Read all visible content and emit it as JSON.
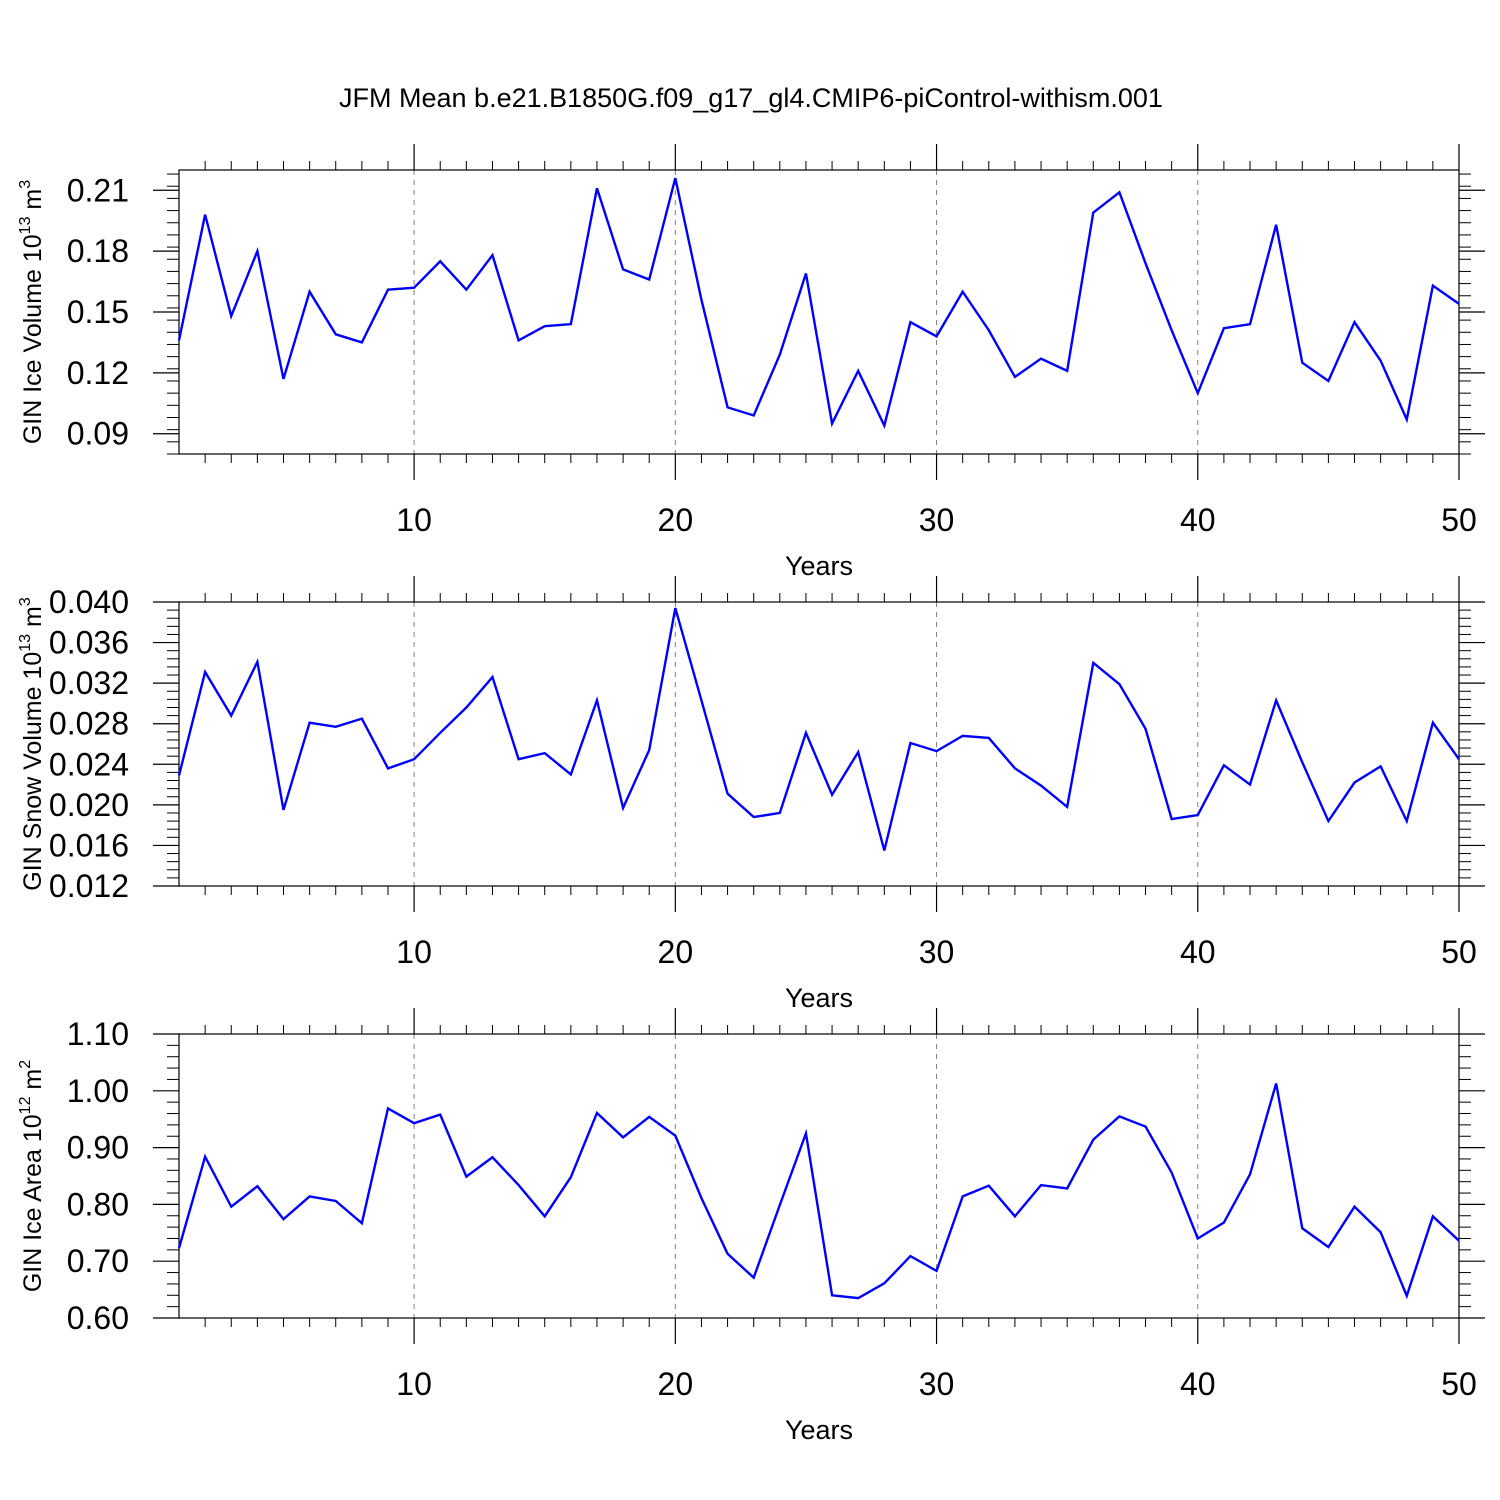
{
  "title": "JFM Mean b.e21.B1850G.f09_g17_gl4.CMIP6-piControl-withism.001",
  "colors": {
    "line": "#0000ff",
    "frame": "#000000",
    "grid": "#808080"
  },
  "chart_data": [
    {
      "type": "line",
      "ylabel": {
        "main": "GIN Ice Volume 10",
        "exponent": "13",
        "unit": " m",
        "unit_exp": "3"
      },
      "xlabel": "Years",
      "xlim": [
        1,
        50
      ],
      "ylim": [
        0.08,
        0.22
      ],
      "yticks": [
        0.09,
        0.12,
        0.15,
        0.18,
        0.21
      ],
      "ytick_labels": [
        "0.09",
        "0.12",
        "0.15",
        "0.18",
        "0.21"
      ],
      "xticks": [
        10,
        20,
        30,
        40,
        50
      ],
      "xtick_labels": [
        "10",
        "20",
        "30",
        "40",
        "50"
      ],
      "x": [
        1,
        2,
        3,
        4,
        5,
        6,
        7,
        8,
        9,
        10,
        11,
        12,
        13,
        14,
        15,
        16,
        17,
        18,
        19,
        20,
        21,
        22,
        23,
        24,
        25,
        26,
        27,
        28,
        29,
        30,
        31,
        32,
        33,
        34,
        35,
        36,
        37,
        38,
        39,
        40,
        41,
        42,
        43,
        44,
        45,
        46,
        47,
        48,
        49,
        50
      ],
      "values": [
        0.136,
        0.198,
        0.148,
        0.18,
        0.117,
        0.16,
        0.139,
        0.135,
        0.161,
        0.162,
        0.175,
        0.161,
        0.178,
        0.136,
        0.143,
        0.144,
        0.211,
        0.171,
        0.166,
        0.216,
        0.156,
        0.103,
        0.099,
        0.129,
        0.169,
        0.095,
        0.121,
        0.094,
        0.145,
        0.138,
        0.16,
        0.141,
        0.118,
        0.127,
        0.121,
        0.199,
        0.209,
        0.174,
        0.141,
        0.11,
        0.142,
        0.144,
        0.193,
        0.125,
        0.116,
        0.145,
        0.126,
        0.097,
        0.163,
        0.154
      ]
    },
    {
      "type": "line",
      "ylabel": {
        "main": "GIN Snow Volume 10",
        "exponent": "13",
        "unit": " m",
        "unit_exp": "3"
      },
      "xlabel": "Years",
      "xlim": [
        1,
        50
      ],
      "ylim": [
        0.012,
        0.04
      ],
      "yticks": [
        0.012,
        0.016,
        0.02,
        0.024,
        0.028,
        0.032,
        0.036,
        0.04
      ],
      "ytick_labels": [
        "0.012",
        "0.016",
        "0.020",
        "0.024",
        "0.028",
        "0.032",
        "0.036",
        "0.040"
      ],
      "xticks": [
        10,
        20,
        30,
        40,
        50
      ],
      "xtick_labels": [
        "10",
        "20",
        "30",
        "40",
        "50"
      ],
      "x": [
        1,
        2,
        3,
        4,
        5,
        6,
        7,
        8,
        9,
        10,
        11,
        12,
        13,
        14,
        15,
        16,
        17,
        18,
        19,
        20,
        21,
        22,
        23,
        24,
        25,
        26,
        27,
        28,
        29,
        30,
        31,
        32,
        33,
        34,
        35,
        36,
        37,
        38,
        39,
        40,
        41,
        42,
        43,
        44,
        45,
        46,
        47,
        48,
        49,
        50
      ],
      "values": [
        0.0229,
        0.0331,
        0.0288,
        0.0341,
        0.0195,
        0.0281,
        0.0277,
        0.0285,
        0.0236,
        0.0245,
        0.0271,
        0.0296,
        0.0326,
        0.0245,
        0.0251,
        0.023,
        0.0303,
        0.0197,
        0.0254,
        0.0394,
        0.0303,
        0.0211,
        0.0188,
        0.0192,
        0.0271,
        0.021,
        0.0252,
        0.0155,
        0.0261,
        0.0253,
        0.0268,
        0.0266,
        0.0236,
        0.0219,
        0.0198,
        0.034,
        0.0319,
        0.0275,
        0.0186,
        0.019,
        0.0239,
        0.022,
        0.0303,
        0.0242,
        0.0184,
        0.0222,
        0.0238,
        0.0184,
        0.0281,
        0.0245
      ]
    },
    {
      "type": "line",
      "ylabel": {
        "main": "GIN Ice Area 10",
        "exponent": "12",
        "unit": " m",
        "unit_exp": "2"
      },
      "xlabel": "Years",
      "xlim": [
        1,
        50
      ],
      "ylim": [
        0.6,
        1.1
      ],
      "yticks": [
        0.6,
        0.7,
        0.8,
        0.9,
        1.0,
        1.1
      ],
      "ytick_labels": [
        "0.60",
        "0.70",
        "0.80",
        "0.90",
        "1.00",
        "1.10"
      ],
      "xticks": [
        10,
        20,
        30,
        40,
        50
      ],
      "xtick_labels": [
        "10",
        "20",
        "30",
        "40",
        "50"
      ],
      "x": [
        1,
        2,
        3,
        4,
        5,
        6,
        7,
        8,
        9,
        10,
        11,
        12,
        13,
        14,
        15,
        16,
        17,
        18,
        19,
        20,
        21,
        22,
        23,
        24,
        25,
        26,
        27,
        28,
        29,
        30,
        31,
        32,
        33,
        34,
        35,
        36,
        37,
        38,
        39,
        40,
        41,
        42,
        43,
        44,
        45,
        46,
        47,
        48,
        49,
        50
      ],
      "values": [
        0.723,
        0.884,
        0.796,
        0.832,
        0.774,
        0.814,
        0.806,
        0.767,
        0.969,
        0.943,
        0.958,
        0.849,
        0.883,
        0.834,
        0.779,
        0.848,
        0.961,
        0.918,
        0.954,
        0.921,
        0.811,
        0.713,
        0.671,
        0.799,
        0.925,
        0.64,
        0.635,
        0.661,
        0.709,
        0.683,
        0.814,
        0.833,
        0.779,
        0.834,
        0.828,
        0.914,
        0.955,
        0.937,
        0.856,
        0.74,
        0.768,
        0.853,
        1.013,
        0.758,
        0.725,
        0.796,
        0.751,
        0.639,
        0.779,
        0.736
      ]
    }
  ]
}
